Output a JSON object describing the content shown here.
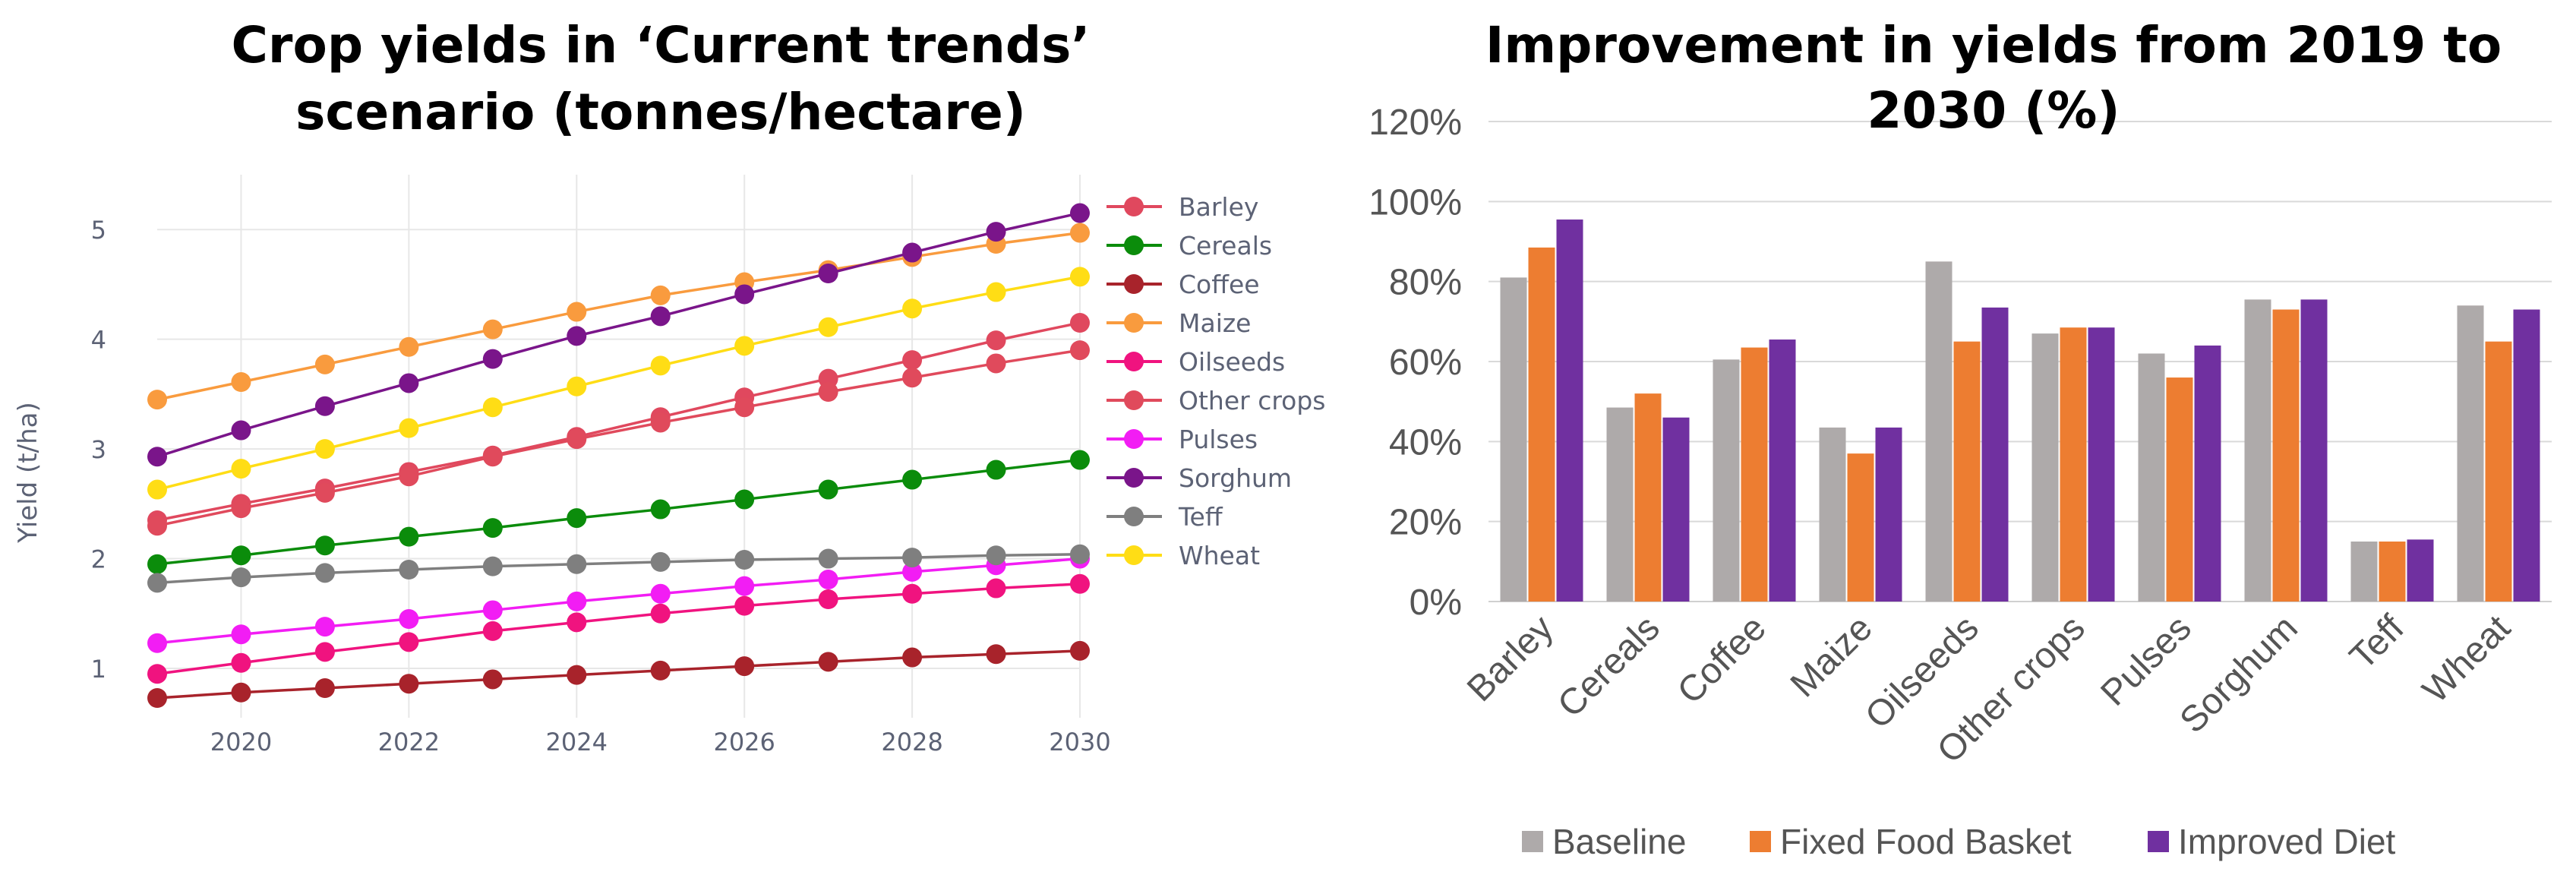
{
  "chart_data": [
    {
      "type": "line",
      "title": "Crop yields in ‘Current trends’ scenario (tonnes/hectare)",
      "title_lines": [
        "Crop yields in ‘Current trends’",
        "scenario (tonnes/hectare)"
      ],
      "ylabel": "Yield (t/ha)",
      "xlabel": "",
      "x": [
        2019,
        2020,
        2021,
        2022,
        2023,
        2024,
        2025,
        2026,
        2027,
        2028,
        2029,
        2030
      ],
      "xticks": [
        2020,
        2022,
        2024,
        2026,
        2028,
        2030
      ],
      "yticks": [
        1,
        2,
        3,
        4,
        5
      ],
      "xlim": [
        2019,
        2030
      ],
      "ylim": [
        0.55,
        5.5
      ],
      "grid": true,
      "legend_position": "right",
      "series": [
        {
          "name": "Barley",
          "color": "#e0485e",
          "values": [
            2.35,
            2.5,
            2.64,
            2.79,
            2.94,
            3.11,
            3.29,
            3.47,
            3.64,
            3.81,
            3.99,
            4.15
          ]
        },
        {
          "name": "Cereals",
          "color": "#0b8c0b",
          "values": [
            1.95,
            2.03,
            2.12,
            2.2,
            2.28,
            2.37,
            2.45,
            2.54,
            2.63,
            2.72,
            2.81,
            2.9
          ]
        },
        {
          "name": "Coffee",
          "color": "#a8232b",
          "values": [
            0.73,
            0.78,
            0.82,
            0.86,
            0.9,
            0.94,
            0.98,
            1.02,
            1.06,
            1.1,
            1.13,
            1.16
          ]
        },
        {
          "name": "Maize",
          "color": "#f99b3e",
          "values": [
            3.45,
            3.61,
            3.77,
            3.93,
            4.09,
            4.25,
            4.4,
            4.52,
            4.63,
            4.75,
            4.87,
            4.97
          ]
        },
        {
          "name": "Oilseeds",
          "color": "#f0137f",
          "values": [
            0.95,
            1.05,
            1.15,
            1.24,
            1.34,
            1.42,
            1.5,
            1.57,
            1.63,
            1.68,
            1.73,
            1.77
          ]
        },
        {
          "name": "Other crops",
          "color": "#e04a5c",
          "values": [
            2.3,
            2.46,
            2.6,
            2.75,
            2.93,
            3.09,
            3.24,
            3.38,
            3.52,
            3.65,
            3.78,
            3.9
          ]
        },
        {
          "name": "Pulses",
          "color": "#f21df4",
          "values": [
            1.23,
            1.31,
            1.38,
            1.45,
            1.53,
            1.61,
            1.68,
            1.75,
            1.81,
            1.88,
            1.94,
            2.0
          ]
        },
        {
          "name": "Sorghum",
          "color": "#7a158a",
          "values": [
            2.93,
            3.17,
            3.39,
            3.6,
            3.82,
            4.03,
            4.21,
            4.41,
            4.6,
            4.79,
            4.98,
            5.15
          ]
        },
        {
          "name": "Teff",
          "color": "#7f7f7f",
          "values": [
            1.78,
            1.83,
            1.87,
            1.9,
            1.93,
            1.95,
            1.97,
            1.99,
            2.0,
            2.01,
            2.03,
            2.04
          ]
        },
        {
          "name": "Wheat",
          "color": "#ffdd15",
          "values": [
            2.63,
            2.82,
            3.0,
            3.19,
            3.38,
            3.57,
            3.76,
            3.94,
            4.11,
            4.28,
            4.43,
            4.57
          ]
        }
      ]
    },
    {
      "type": "bar",
      "title": "Improvement in yields from 2019 to 2030 (%)",
      "title_lines": [
        "Improvement in yields from 2019 to",
        "2030 (%)"
      ],
      "xlabel": "",
      "ylabel": "",
      "categories": [
        "Barley",
        "Cereals",
        "Coffee",
        "Maize",
        "Oilseeds",
        "Other crops",
        "Pulses",
        "Sorghum",
        "Teff",
        "Wheat"
      ],
      "yticks": [
        "0%",
        "20%",
        "40%",
        "60%",
        "80%",
        "100%",
        "120%"
      ],
      "ylim": [
        0,
        120
      ],
      "grid": true,
      "legend_position": "bottom",
      "series": [
        {
          "name": "Baseline",
          "color": "#aeaaaa",
          "values": [
            81,
            48.5,
            60.5,
            43.5,
            85,
            67,
            62,
            75.5,
            15,
            74
          ]
        },
        {
          "name": "Fixed Food Basket",
          "color": "#ed7d31",
          "values": [
            88.5,
            52,
            63.5,
            37,
            65,
            68.5,
            56,
            73,
            15,
            65
          ]
        },
        {
          "name": "Improved Diet",
          "color": "#7030a0",
          "values": [
            95.5,
            46,
            65.5,
            43.5,
            73.5,
            68.5,
            64,
            75.5,
            15.5,
            73
          ]
        }
      ]
    }
  ]
}
